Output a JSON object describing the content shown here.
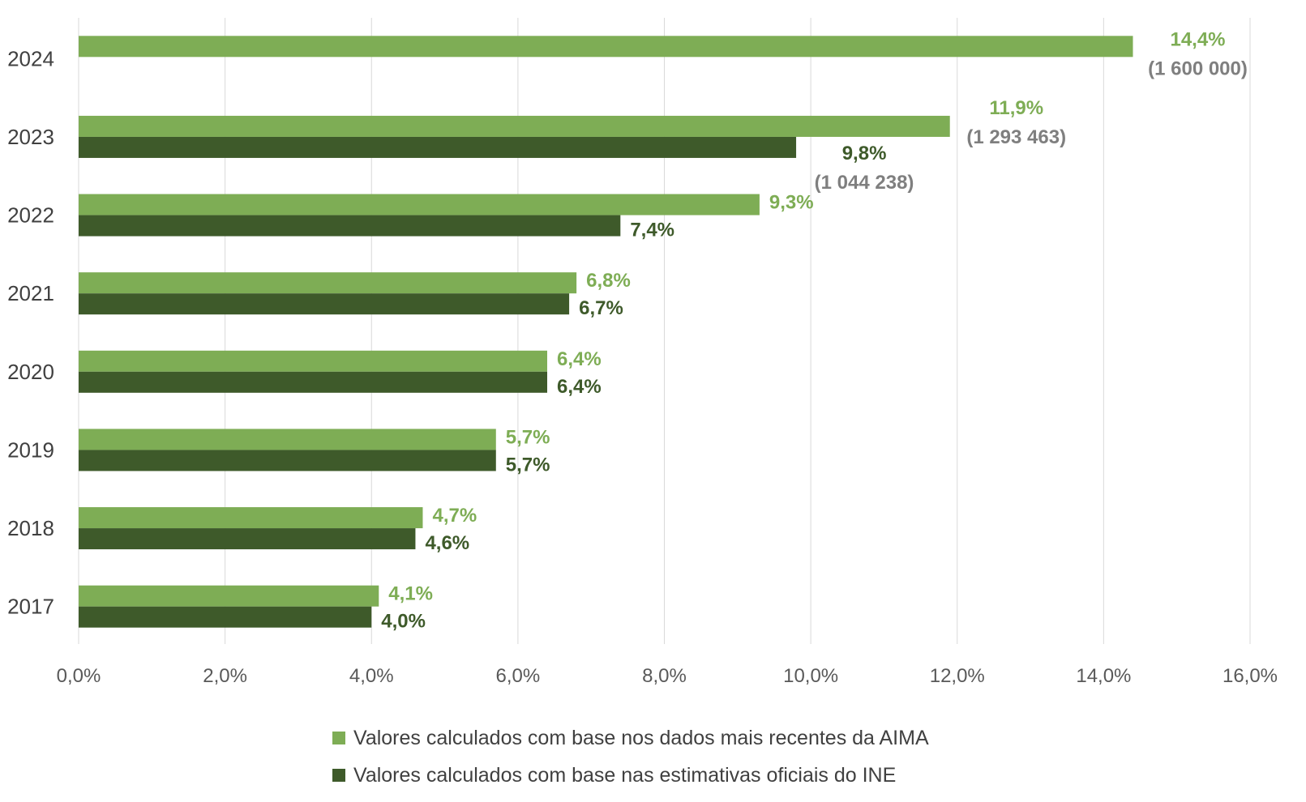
{
  "chart_data": {
    "type": "bar",
    "orientation": "horizontal",
    "categories": [
      "2024",
      "2023",
      "2022",
      "2021",
      "2020",
      "2019",
      "2018",
      "2017"
    ],
    "series": [
      {
        "name": "Valores calculados com base nos dados mais recentes da AIMA",
        "color": "#7ead55",
        "values": [
          14.4,
          11.9,
          9.3,
          6.8,
          6.4,
          5.7,
          4.7,
          4.1
        ],
        "labels": [
          "14,4%",
          "11,9%",
          "9,3%",
          "6,8%",
          "6,4%",
          "5,7%",
          "4,7%",
          "4,1%"
        ]
      },
      {
        "name": "Valores calculados com base nas estimativas oficiais do INE",
        "color": "#3e5a2a",
        "values": [
          null,
          9.8,
          7.4,
          6.7,
          6.4,
          5.7,
          4.6,
          4.0
        ],
        "labels": [
          "",
          "9,8%",
          "7,4%",
          "6,7%",
          "6,4%",
          "5,7%",
          "4,6%",
          "4,0%"
        ]
      }
    ],
    "annotations": [
      {
        "category": "2024",
        "series": 0,
        "text": "(1 600 000)"
      },
      {
        "category": "2023",
        "series": 0,
        "text": "(1 293 463)"
      },
      {
        "category": "2023",
        "series": 1,
        "text": "(1 044 238)"
      }
    ],
    "xlim": [
      0,
      16
    ],
    "xticks": [
      0,
      2,
      4,
      6,
      8,
      10,
      12,
      14,
      16
    ],
    "xtick_labels": [
      "0,0%",
      "2,0%",
      "4,0%",
      "6,0%",
      "8,0%",
      "10,0%",
      "12,0%",
      "14,0%",
      "16,0%"
    ],
    "grid": true,
    "legend_position": "bottom",
    "annotation_color": "#7f7f7f"
  }
}
